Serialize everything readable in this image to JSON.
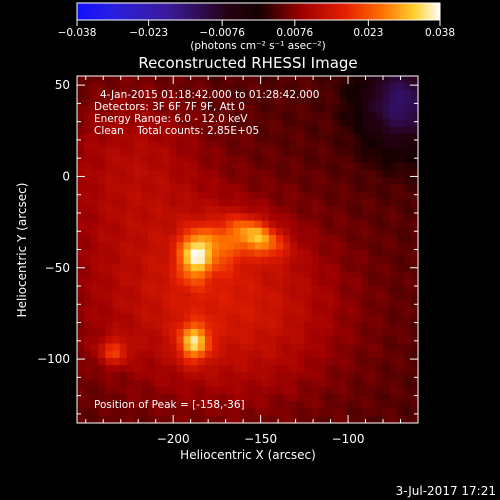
{
  "chart_data": {
    "type": "heatmap",
    "title": "Reconstructed RHESSI Image",
    "xlabel": "Heliocentric X (arcsec)",
    "ylabel": "Heliocentric Y (arcsec)",
    "xlim": [
      -255,
      -60
    ],
    "ylim": [
      -135,
      55
    ],
    "x_ticks": [
      -200,
      -150,
      -100
    ],
    "x_tick_labels": [
      "−200",
      "−150",
      "−100"
    ],
    "y_ticks": [
      50,
      0,
      -50,
      -100
    ],
    "y_tick_labels": [
      "50",
      "0",
      "−50",
      "−100"
    ],
    "colorbar": {
      "range": [
        -0.038,
        0.038
      ],
      "ticks": [
        -0.038,
        -0.023,
        -0.0076,
        0.0076,
        0.023,
        0.038
      ],
      "tick_labels": [
        "−0.038",
        "−0.023",
        "−0.0076",
        "0.0076",
        "0.023",
        "0.038"
      ],
      "unit_text": "(photons cm⁻² s⁻¹ asec⁻²)"
    },
    "annotations": {
      "time_range": "4-Jan-2015 01:18:42.000 to 01:28:42.000",
      "detectors": "Detectors: 3F 6F 7F 9F, Att 0",
      "energy_range": "Energy Range: 6.0 - 12.0 keV",
      "clean": "Clean    Total counts: 2.85E+05",
      "peak": "Position of Peak = [-158,-36]"
    },
    "sources": [
      {
        "x": -152,
        "y": -33,
        "sx": 11,
        "sy": 6,
        "rot": -25,
        "amp": 0.02
      },
      {
        "x": -175,
        "y": -38,
        "sx": 10,
        "sy": 9,
        "rot": 0,
        "amp": 0.012
      },
      {
        "x": -188,
        "y": -44,
        "sx": 6,
        "sy": 9,
        "rot": 0,
        "amp": 0.019
      },
      {
        "x": -188,
        "y": -91,
        "sx": 6,
        "sy": 7,
        "rot": 0,
        "amp": 0.021
      },
      {
        "x": -234,
        "y": -96,
        "sx": 6,
        "sy": 5,
        "rot": 0,
        "amp": 0.012
      },
      {
        "x": -200,
        "y": -60,
        "sx": 45,
        "sy": 40,
        "rot": 0,
        "amp": 0.008
      },
      {
        "x": -150,
        "y": -75,
        "sx": 40,
        "sy": 35,
        "rot": 0,
        "amp": 0.007
      },
      {
        "x": -225,
        "y": 10,
        "sx": 30,
        "sy": 30,
        "rot": 0,
        "amp": 0.006
      },
      {
        "x": -70,
        "y": 40,
        "sx": 16,
        "sy": 18,
        "rot": 0,
        "amp": -0.018
      }
    ],
    "peak": {
      "x": -158,
      "y": -36
    },
    "colors": {
      "background": "#000000",
      "foreground": "#ffffff"
    }
  },
  "footer": {
    "date": "3-Jul-2017 17:21"
  }
}
